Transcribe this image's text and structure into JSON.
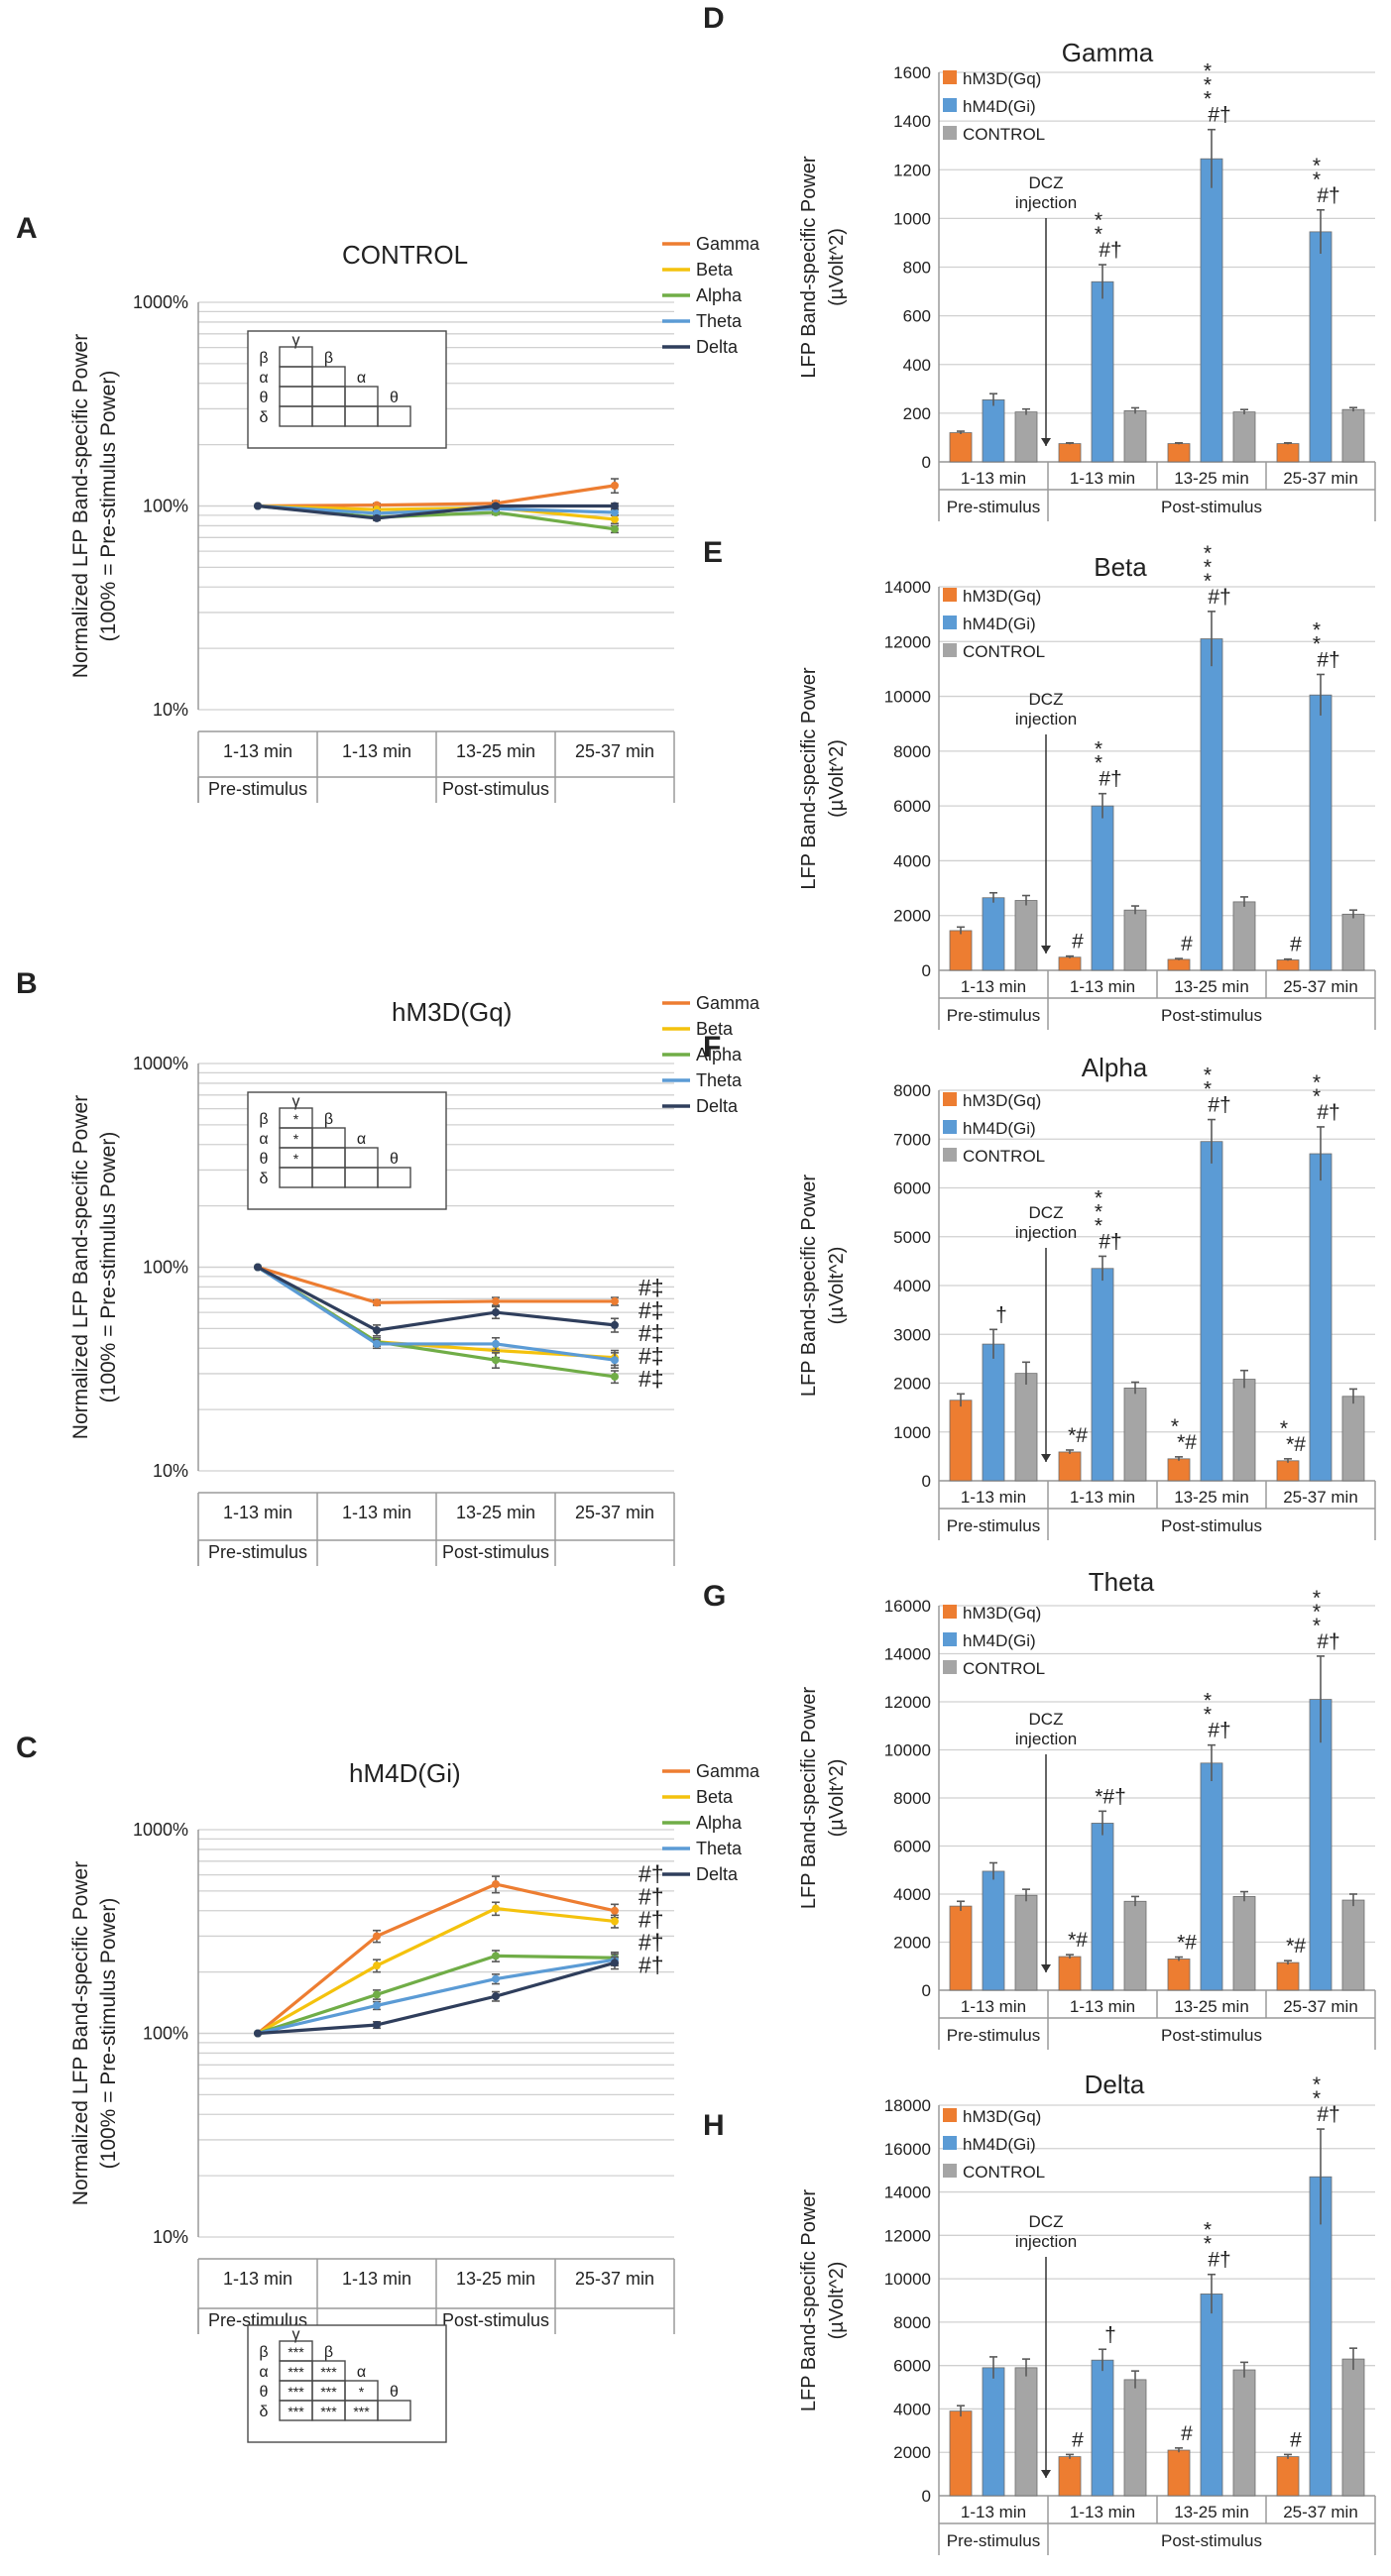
{
  "figure_labels": {
    "A": "A",
    "B": "B",
    "C": "C",
    "D": "D",
    "E": "E",
    "F": "F",
    "G": "G",
    "H": "H"
  },
  "colors": {
    "gamma": "#ED7D31",
    "beta": "#F4C20D",
    "alpha": "#70AD47",
    "theta": "#5B9BD5",
    "delta": "#2F3E5C",
    "gq": "#ED7D31",
    "gi": "#5B9BD5",
    "control": "#A5A5A5"
  },
  "common": {
    "categories": [
      "1-13 min",
      "1-13 min",
      "13-25 min",
      "25-37 min"
    ],
    "group_pre": "Pre-stimulus",
    "group_post": "Post-stimulus",
    "injection_label": [
      "DCZ",
      "injection"
    ],
    "line_ylabel": [
      "Normalized LFP Band-specific Power",
      "(100% = Pre-stimulus Power)"
    ],
    "bar_ylabel": [
      "LFP Band-specific Power",
      "(µVolt^2)"
    ],
    "log_ticks": [
      "10%",
      "100%",
      "1000%"
    ]
  },
  "chart_data": [
    {
      "id": "A",
      "type": "line",
      "title": "CONTROL",
      "scale": "log",
      "ylim": [
        10,
        1000
      ],
      "categories": [
        "1-13 min",
        "1-13 min",
        "13-25 min",
        "25-37 min"
      ],
      "series": [
        {
          "name": "Gamma",
          "key": "gamma",
          "values": [
            100,
            101,
            103,
            126
          ],
          "err": [
            0,
            2,
            3,
            10
          ]
        },
        {
          "name": "Beta",
          "key": "beta",
          "values": [
            100,
            96,
            98,
            86
          ],
          "err": [
            0,
            2,
            2,
            4
          ]
        },
        {
          "name": "Alpha",
          "key": "alpha",
          "values": [
            100,
            88,
            93,
            77
          ],
          "err": [
            0,
            2,
            2,
            3
          ]
        },
        {
          "name": "Theta",
          "key": "theta",
          "values": [
            100,
            92,
            97,
            93
          ],
          "err": [
            0,
            2,
            2,
            3
          ]
        },
        {
          "name": "Delta",
          "key": "delta",
          "values": [
            100,
            87,
            100,
            100
          ],
          "err": [
            0,
            2,
            2,
            3
          ]
        }
      ],
      "end_marks": [],
      "stats_table": {
        "greek": [
          "γ",
          "β",
          "α",
          "θ",
          "δ"
        ],
        "rows": [
          [
            ""
          ],
          [
            "",
            ""
          ],
          [
            "",
            "",
            ""
          ],
          [
            "",
            "",
            "",
            ""
          ]
        ]
      }
    },
    {
      "id": "B",
      "type": "line",
      "title": "hM3D(Gq)",
      "scale": "log",
      "ylim": [
        10,
        1000
      ],
      "categories": [
        "1-13 min",
        "1-13 min",
        "13-25 min",
        "25-37 min"
      ],
      "series": [
        {
          "name": "Gamma",
          "key": "gamma",
          "values": [
            100,
            67,
            68,
            68
          ],
          "err": [
            0,
            2,
            3,
            3
          ]
        },
        {
          "name": "Beta",
          "key": "beta",
          "values": [
            100,
            43,
            39,
            36
          ],
          "err": [
            0,
            2,
            3,
            3
          ]
        },
        {
          "name": "Alpha",
          "key": "alpha",
          "values": [
            100,
            43,
            35,
            29
          ],
          "err": [
            0,
            2,
            3,
            2
          ]
        },
        {
          "name": "Theta",
          "key": "theta",
          "values": [
            100,
            42,
            42,
            35
          ],
          "err": [
            0,
            2,
            3,
            3
          ]
        },
        {
          "name": "Delta",
          "key": "delta",
          "values": [
            100,
            49,
            60,
            52
          ],
          "err": [
            0,
            3,
            4,
            4
          ]
        }
      ],
      "end_marks": [
        "#‡",
        "#‡",
        "#‡",
        "#‡",
        "#‡"
      ],
      "stats_table": {
        "greek": [
          "γ",
          "β",
          "α",
          "θ",
          "δ"
        ],
        "rows": [
          [
            "*"
          ],
          [
            "*",
            ""
          ],
          [
            "*",
            "",
            ""
          ],
          [
            "",
            "",
            "",
            ""
          ]
        ]
      }
    },
    {
      "id": "C",
      "type": "line",
      "title": "hM4D(Gi)",
      "scale": "log",
      "ylim": [
        10,
        1000
      ],
      "categories": [
        "1-13 min",
        "1-13 min",
        "13-25 min",
        "25-37 min"
      ],
      "series": [
        {
          "name": "Gamma",
          "key": "gamma",
          "values": [
            100,
            300,
            540,
            400
          ],
          "err": [
            0,
            20,
            50,
            30
          ]
        },
        {
          "name": "Beta",
          "key": "beta",
          "values": [
            100,
            215,
            410,
            355
          ],
          "err": [
            0,
            15,
            30,
            25
          ]
        },
        {
          "name": "Alpha",
          "key": "alpha",
          "values": [
            100,
            155,
            240,
            235
          ],
          "err": [
            0,
            8,
            15,
            15
          ]
        },
        {
          "name": "Theta",
          "key": "theta",
          "values": [
            100,
            137,
            185,
            230
          ],
          "err": [
            0,
            6,
            10,
            15
          ]
        },
        {
          "name": "Delta",
          "key": "delta",
          "values": [
            100,
            110,
            152,
            222
          ],
          "err": [
            0,
            4,
            8,
            15
          ]
        }
      ],
      "end_marks": [
        "#†",
        "#†",
        "#†",
        "#†",
        "#†"
      ],
      "stats_table": {
        "greek": [
          "γ",
          "β",
          "α",
          "θ",
          "δ"
        ],
        "rows": [
          [
            "***"
          ],
          [
            "***",
            "***"
          ],
          [
            "***",
            "***",
            "*"
          ],
          [
            "***",
            "***",
            "***",
            ""
          ]
        ]
      }
    },
    {
      "id": "D",
      "type": "bar",
      "title": "Gamma",
      "ylim": [
        0,
        1600
      ],
      "yticks": [
        "0",
        "200",
        "400",
        "600",
        "800",
        "1000",
        "1200",
        "1400",
        "1600"
      ],
      "categories": [
        "1-13 min",
        "1-13 min",
        "13-25 min",
        "25-37 min"
      ],
      "series": [
        {
          "name": "hM3D(Gq)",
          "key": "gq",
          "values": [
            120,
            75,
            75,
            75
          ],
          "err": [
            6,
            3,
            3,
            3
          ]
        },
        {
          "name": "hM4D(Gi)",
          "key": "gi",
          "values": [
            255,
            740,
            1245,
            945
          ],
          "err": [
            25,
            70,
            120,
            90
          ]
        },
        {
          "name": "CONTROL",
          "key": "control",
          "values": [
            205,
            210,
            205,
            215
          ],
          "err": [
            12,
            12,
            10,
            8
          ]
        }
      ],
      "annotations": [
        {
          "cat": 1,
          "series": 1,
          "stars": "*\n*",
          "tail": "#†"
        },
        {
          "cat": 2,
          "series": 1,
          "stars": "*\n*\n*",
          "tail": "#†"
        },
        {
          "cat": 3,
          "series": 1,
          "stars": "*\n*",
          "tail": "#†"
        }
      ]
    },
    {
      "id": "E",
      "type": "bar",
      "title": "Beta",
      "ylim": [
        0,
        14000
      ],
      "yticks": [
        "0",
        "2000",
        "4000",
        "6000",
        "8000",
        "10000",
        "12000",
        "14000"
      ],
      "categories": [
        "1-13 min",
        "1-13 min",
        "13-25 min",
        "25-37 min"
      ],
      "series": [
        {
          "name": "hM3D(Gq)",
          "key": "gq",
          "values": [
            1450,
            480,
            400,
            380
          ],
          "err": [
            130,
            40,
            30,
            30
          ]
        },
        {
          "name": "hM4D(Gi)",
          "key": "gi",
          "values": [
            2650,
            6000,
            12100,
            10050
          ],
          "err": [
            180,
            450,
            1000,
            750
          ]
        },
        {
          "name": "CONTROL",
          "key": "control",
          "values": [
            2550,
            2200,
            2500,
            2050
          ],
          "err": [
            180,
            150,
            180,
            150
          ]
        }
      ],
      "annotations": [
        {
          "cat": 1,
          "series": 0,
          "stars": "",
          "tail": "#"
        },
        {
          "cat": 2,
          "series": 0,
          "stars": "",
          "tail": "#"
        },
        {
          "cat": 3,
          "series": 0,
          "stars": "",
          "tail": "#"
        },
        {
          "cat": 1,
          "series": 1,
          "stars": "*\n*",
          "tail": "#†"
        },
        {
          "cat": 2,
          "series": 1,
          "stars": "*\n*\n*",
          "tail": "#†"
        },
        {
          "cat": 3,
          "series": 1,
          "stars": "*\n*",
          "tail": "#†"
        }
      ]
    },
    {
      "id": "F",
      "type": "bar",
      "title": "Alpha",
      "ylim": [
        0,
        8000
      ],
      "yticks": [
        "0",
        "1000",
        "2000",
        "3000",
        "4000",
        "5000",
        "6000",
        "7000",
        "8000"
      ],
      "categories": [
        "1-13 min",
        "1-13 min",
        "13-25 min",
        "25-37 min"
      ],
      "series": [
        {
          "name": "hM3D(Gq)",
          "key": "gq",
          "values": [
            1650,
            590,
            450,
            410
          ],
          "err": [
            130,
            40,
            40,
            40
          ]
        },
        {
          "name": "hM4D(Gi)",
          "key": "gi",
          "values": [
            2800,
            4350,
            6950,
            6700
          ],
          "err": [
            300,
            250,
            450,
            550
          ]
        },
        {
          "name": "CONTROL",
          "key": "control",
          "values": [
            2200,
            1900,
            2080,
            1730
          ],
          "err": [
            230,
            120,
            180,
            150
          ]
        }
      ],
      "annotations": [
        {
          "cat": 0,
          "series": 1,
          "stars": "",
          "tail": "†"
        },
        {
          "cat": 1,
          "series": 0,
          "stars": "",
          "tail": "*#"
        },
        {
          "cat": 2,
          "series": 0,
          "stars": "*",
          "tail": "*#"
        },
        {
          "cat": 3,
          "series": 0,
          "stars": "*",
          "tail": "*#"
        },
        {
          "cat": 1,
          "series": 1,
          "stars": "*\n*\n*",
          "tail": "#†"
        },
        {
          "cat": 2,
          "series": 1,
          "stars": "*\n*",
          "tail": "#†"
        },
        {
          "cat": 3,
          "series": 1,
          "stars": "*\n*",
          "tail": "#†"
        }
      ]
    },
    {
      "id": "G",
      "type": "bar",
      "title": "Theta",
      "ylim": [
        0,
        16000
      ],
      "yticks": [
        "0",
        "2000",
        "4000",
        "6000",
        "8000",
        "10000",
        "12000",
        "14000",
        "16000"
      ],
      "categories": [
        "1-13 min",
        "1-13 min",
        "13-25 min",
        "25-37 min"
      ],
      "series": [
        {
          "name": "hM3D(Gq)",
          "key": "gq",
          "values": [
            3500,
            1400,
            1300,
            1150
          ],
          "err": [
            200,
            80,
            80,
            80
          ]
        },
        {
          "name": "hM4D(Gi)",
          "key": "gi",
          "values": [
            4950,
            6950,
            9450,
            12100
          ],
          "err": [
            350,
            500,
            750,
            1800
          ]
        },
        {
          "name": "CONTROL",
          "key": "control",
          "values": [
            3950,
            3700,
            3900,
            3750
          ],
          "err": [
            250,
            200,
            200,
            250
          ]
        }
      ],
      "annotations": [
        {
          "cat": 1,
          "series": 0,
          "stars": "",
          "tail": "*#"
        },
        {
          "cat": 2,
          "series": 0,
          "stars": "",
          "tail": "*#"
        },
        {
          "cat": 3,
          "series": 0,
          "stars": "",
          "tail": "*#"
        },
        {
          "cat": 1,
          "series": 1,
          "stars": "",
          "tail": "*#†"
        },
        {
          "cat": 2,
          "series": 1,
          "stars": "*\n*",
          "tail": "#†"
        },
        {
          "cat": 3,
          "series": 1,
          "stars": "*\n*\n*",
          "tail": "#†"
        }
      ]
    },
    {
      "id": "H",
      "type": "bar",
      "title": "Delta",
      "ylim": [
        0,
        18000
      ],
      "yticks": [
        "0",
        "2000",
        "4000",
        "6000",
        "8000",
        "10000",
        "12000",
        "14000",
        "16000",
        "18000"
      ],
      "categories": [
        "1-13 min",
        "1-13 min",
        "13-25 min",
        "25-37 min"
      ],
      "series": [
        {
          "name": "hM3D(Gq)",
          "key": "gq",
          "values": [
            3900,
            1800,
            2100,
            1800
          ],
          "err": [
            250,
            100,
            100,
            100
          ]
        },
        {
          "name": "hM4D(Gi)",
          "key": "gi",
          "values": [
            5900,
            6250,
            9300,
            14700
          ],
          "err": [
            500,
            500,
            900,
            2200
          ]
        },
        {
          "name": "CONTROL",
          "key": "control",
          "values": [
            5900,
            5350,
            5800,
            6300
          ],
          "err": [
            400,
            400,
            350,
            500
          ]
        }
      ],
      "annotations": [
        {
          "cat": 1,
          "series": 0,
          "stars": "",
          "tail": "#"
        },
        {
          "cat": 2,
          "series": 0,
          "stars": "",
          "tail": "#"
        },
        {
          "cat": 3,
          "series": 0,
          "stars": "",
          "tail": "#"
        },
        {
          "cat": 1,
          "series": 1,
          "stars": "",
          "tail": "†"
        },
        {
          "cat": 2,
          "series": 1,
          "stars": "*\n*",
          "tail": "#†"
        },
        {
          "cat": 3,
          "series": 1,
          "stars": "*\n*",
          "tail": "#†"
        }
      ]
    }
  ]
}
